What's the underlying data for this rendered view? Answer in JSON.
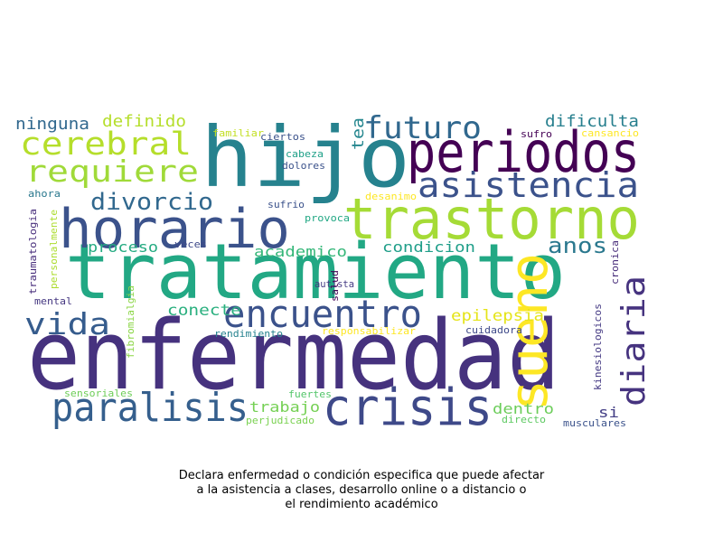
{
  "caption": {
    "line1": "Declara enfermedad o condición especifica que puede afectar",
    "line2": "a la asistencia a clases, desarrollo online o a distancio o",
    "line3": "el rendimiento académico"
  },
  "wordcloud": {
    "words": [
      {
        "text": "enfermedad",
        "color": "#46327e"
      },
      {
        "text": "tratamiento",
        "color": "#22a884"
      },
      {
        "text": "hijo",
        "color": "#26828e"
      },
      {
        "text": "horario",
        "color": "#3b528b"
      },
      {
        "text": "trastorno",
        "color": "#a5db36"
      },
      {
        "text": "periodos",
        "color": "#440154"
      },
      {
        "text": "sueno",
        "color": "#fde725"
      },
      {
        "text": "crisis",
        "color": "#3e4989"
      },
      {
        "text": "paralisis",
        "color": "#355f8d"
      },
      {
        "text": "encuentro",
        "color": "#3b528b"
      },
      {
        "text": "asistencia",
        "color": "#3b528b"
      },
      {
        "text": "futuro",
        "color": "#31688e"
      },
      {
        "text": "cerebral",
        "color": "#b5de2b"
      },
      {
        "text": "requiere",
        "color": "#a0da39"
      },
      {
        "text": "diaria",
        "color": "#46337f"
      },
      {
        "text": "vida",
        "color": "#365c8d"
      },
      {
        "text": "divorcio",
        "color": "#31688e"
      },
      {
        "text": "anos",
        "color": "#2a788e"
      },
      {
        "text": "ninguna",
        "color": "#31688e"
      },
      {
        "text": "definido",
        "color": "#b5de2b"
      },
      {
        "text": "dificulta",
        "color": "#277f8e"
      },
      {
        "text": "tea",
        "color": "#24868e"
      },
      {
        "text": "epilepsia",
        "color": "#e5e419"
      },
      {
        "text": "conecte",
        "color": "#2ab07f"
      },
      {
        "text": "proceso",
        "color": "#25ab82"
      },
      {
        "text": "academico",
        "color": "#35b779"
      },
      {
        "text": "condicion",
        "color": "#1f9e89"
      },
      {
        "text": "trabajo",
        "color": "#75d054"
      },
      {
        "text": "dentro",
        "color": "#6ccd5a"
      },
      {
        "text": "si",
        "color": "#433e85"
      },
      {
        "text": "cansancio",
        "color": "#fde725"
      },
      {
        "text": "familiar",
        "color": "#c2df23"
      },
      {
        "text": "ciertos",
        "color": "#3b528b"
      },
      {
        "text": "sufro",
        "color": "#440154"
      },
      {
        "text": "cabeza",
        "color": "#1fa088"
      },
      {
        "text": "dolores",
        "color": "#3b528b"
      },
      {
        "text": "desanimo",
        "color": "#fde725"
      },
      {
        "text": "ahora",
        "color": "#2a788e"
      },
      {
        "text": "sufrio",
        "color": "#3b528b"
      },
      {
        "text": "provoca",
        "color": "#22a884"
      },
      {
        "text": "traumatologia",
        "color": "#472d7b"
      },
      {
        "text": "personalmente",
        "color": "#addc30"
      },
      {
        "text": "veces",
        "color": "#3e4989"
      },
      {
        "text": "autista",
        "color": "#443a83"
      },
      {
        "text": "salud",
        "color": "#440154"
      },
      {
        "text": "cronica",
        "color": "#472c7a"
      },
      {
        "text": "mental",
        "color": "#453781"
      },
      {
        "text": "fibromialgia",
        "color": "#8bd646"
      },
      {
        "text": "rendimiento",
        "color": "#26828e"
      },
      {
        "text": "responsabilizar",
        "color": "#fde725"
      },
      {
        "text": "cuidadora",
        "color": "#3e4989"
      },
      {
        "text": "kinesiologicos",
        "color": "#443983"
      },
      {
        "text": "sensoriales",
        "color": "#6ece58"
      },
      {
        "text": "fuertes",
        "color": "#52c569"
      },
      {
        "text": "perjudicado",
        "color": "#7ad151"
      },
      {
        "text": "directo",
        "color": "#5ec962"
      },
      {
        "text": "musculares",
        "color": "#3b528b"
      }
    ]
  }
}
